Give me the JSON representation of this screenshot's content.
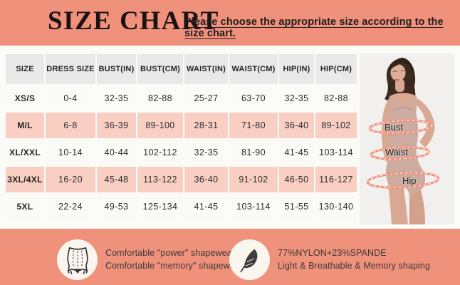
{
  "header": {
    "title": "SIZE CHART",
    "subtitle": "Please choose the appropriate size according to the size chart."
  },
  "table": {
    "headers": [
      "SIZE",
      "DRESS SIZE",
      "BUST(IN)",
      "BUST(CM)",
      "WAIST(IN)",
      "WAIST(CM)",
      "HIP(IN)",
      "HIP(CM)"
    ],
    "rows": [
      {
        "size": "XS/S",
        "values": [
          "0-4",
          "32-35",
          "82-88",
          "25-27",
          "63-70",
          "32-35",
          "82-88"
        ]
      },
      {
        "size": "M/L",
        "values": [
          "6-8",
          "36-39",
          "89-100",
          "28-31",
          "71-80",
          "36-40",
          "89-102"
        ]
      },
      {
        "size": "XL/XXL",
        "values": [
          "10-14",
          "40-44",
          "102-112",
          "32-35",
          "81-90",
          "41-45",
          "103-114"
        ]
      },
      {
        "size": "3XL/4XL",
        "values": [
          "16-20",
          "45-48",
          "113-122",
          "36-40",
          "91-102",
          "46-50",
          "116-127"
        ]
      },
      {
        "size": "5XL",
        "values": [
          "22-24",
          "49-53",
          "125-134",
          "41-45",
          "103-114",
          "51-55",
          "130-140"
        ]
      }
    ]
  },
  "figure": {
    "labels": {
      "bust": "Bust",
      "waist": "Waist",
      "hip": "Hip"
    }
  },
  "features": [
    {
      "icon": "shapewear-icon",
      "lines": [
        "Comfortable \"power\" shapewear",
        "Comfortable \"memory\" shapewear"
      ]
    },
    {
      "icon": "feather-icon",
      "lines": [
        "77%NYLON+23%SPANDE",
        "Light & Breathable & Memory shaping"
      ]
    }
  ],
  "colors": {
    "bg": "#F0917C",
    "panel": "#FBFBF8",
    "header-cell": "#E9E9E9",
    "row-cell": "#FAFAF7",
    "row-alt": "#F9CFC4",
    "photo-bg": "#F1F0EE",
    "ring": "#F2937E",
    "circle": "#FAF6EF"
  }
}
